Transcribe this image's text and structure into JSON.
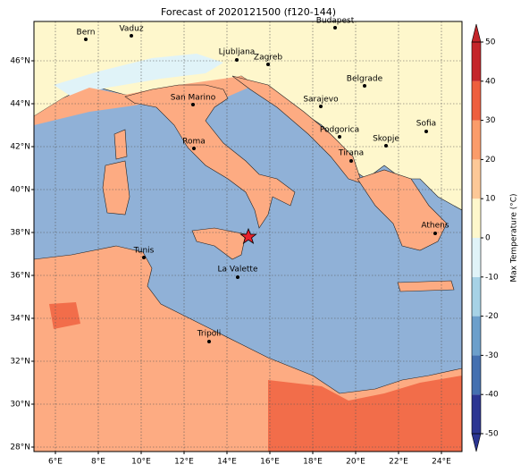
{
  "title": "Forecast of 2020121500 (f120-144)",
  "lon_ticks": [
    {
      "value": 6,
      "label": "6°E"
    },
    {
      "value": 8,
      "label": "8°E"
    },
    {
      "value": 10,
      "label": "10°E"
    },
    {
      "value": 12,
      "label": "12°E"
    },
    {
      "value": 14,
      "label": "14°E"
    },
    {
      "value": 16,
      "label": "16°E"
    },
    {
      "value": 18,
      "label": "18°E"
    },
    {
      "value": 20,
      "label": "20°E"
    },
    {
      "value": 22,
      "label": "22°E"
    },
    {
      "value": 24,
      "label": "24°E"
    }
  ],
  "lat_ticks": [
    {
      "value": 28,
      "label": "28°N"
    },
    {
      "value": 30,
      "label": "30°N"
    },
    {
      "value": 32,
      "label": "32°N"
    },
    {
      "value": 34,
      "label": "34°N"
    },
    {
      "value": 36,
      "label": "36°N"
    },
    {
      "value": 38,
      "label": "38°N"
    },
    {
      "value": 40,
      "label": "40°N"
    },
    {
      "value": 42,
      "label": "42°N"
    },
    {
      "value": 44,
      "label": "44°N"
    },
    {
      "value": 46,
      "label": "46°N"
    }
  ],
  "cities": [
    "Bern",
    "Vaduz",
    "Budapest",
    "Ljubljana",
    "Zagreb",
    "Belgrade",
    "San Marino",
    "Sarajevo",
    "Sofia",
    "Podgorica",
    "Skopje",
    "Roma",
    "Tirana",
    "Athens",
    "Tunis",
    "La Valette",
    "Tripoli"
  ],
  "colorbar": {
    "label": "Max Temperature (°C)",
    "ticks": [
      -50,
      -40,
      -30,
      -20,
      -10,
      0,
      10,
      20,
      30,
      40,
      50
    ],
    "colors": [
      "#2b3592",
      "#4470b0",
      "#6c9fcb",
      "#a6d2e6",
      "#e0f3f8",
      "#fef7cc",
      "#fdc897",
      "#fb9c6a",
      "#ee5f3e",
      "#c4252a"
    ]
  }
}
